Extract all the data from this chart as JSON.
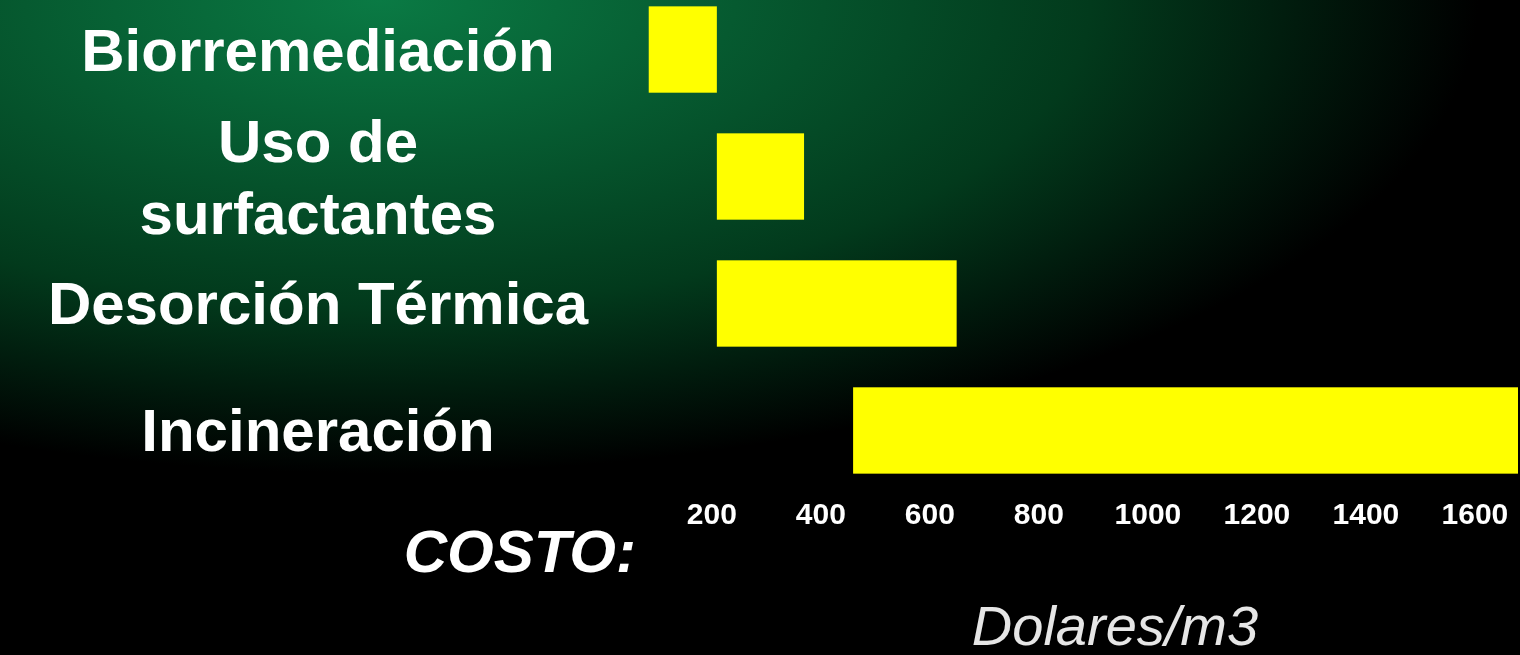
{
  "chart_data": {
    "type": "bar",
    "orientation": "horizontal",
    "xlabel": "Dolares/m3",
    "annotations": [
      "COSTO:"
    ],
    "categories": [
      "Biorremediación",
      "Uso de surfactantes",
      "Desorción Térmica",
      "Incineración"
    ],
    "base": [
      85,
      210,
      210,
      460
    ],
    "values": [
      125,
      160,
      440,
      1220
    ],
    "color": "#ffff00",
    "xlim": [
      80,
      1680
    ],
    "xticks": [
      200,
      400,
      600,
      800,
      1000,
      1200,
      1400,
      1600
    ],
    "grid": false
  }
}
